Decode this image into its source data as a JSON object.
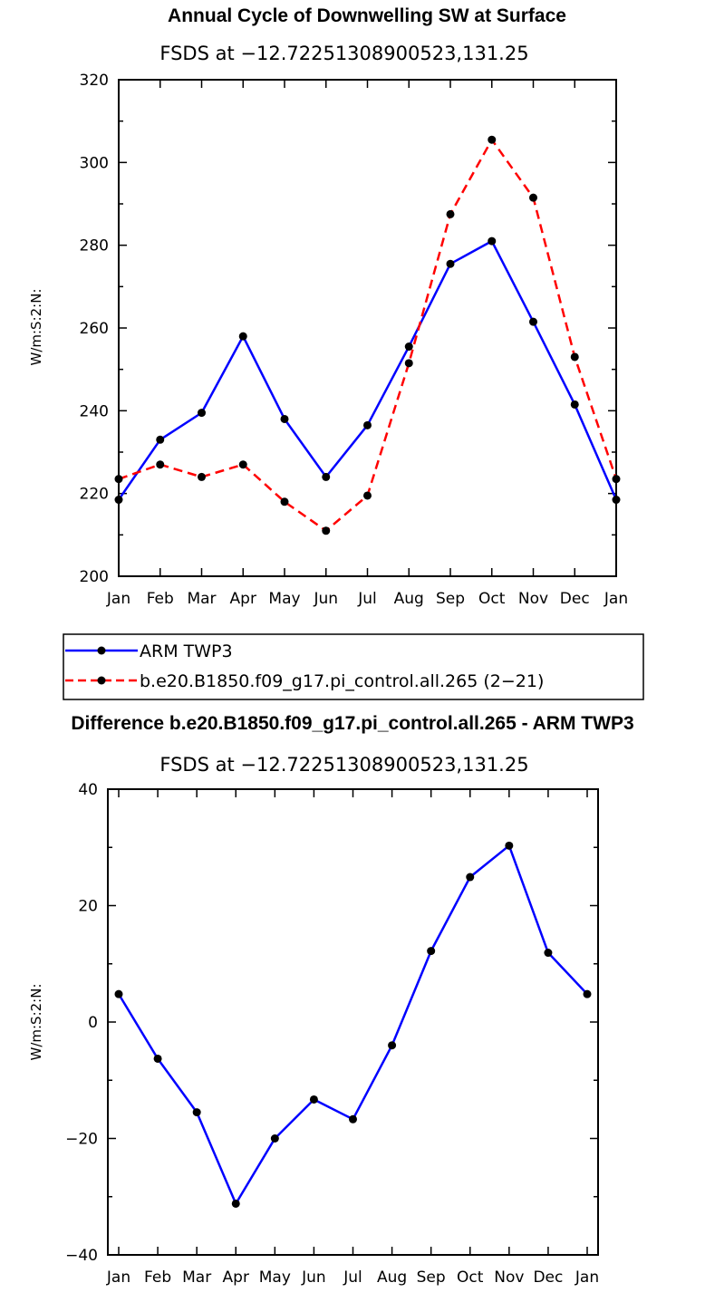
{
  "chart_data": [
    {
      "type": "line",
      "title": "Annual Cycle of Downwelling SW at Surface",
      "subtitle": "FSDS at −12.72251308900523,131.25",
      "ylabel": "W/m:S:2:N:",
      "ylim": [
        200,
        320
      ],
      "yticks": [
        200,
        220,
        240,
        260,
        280,
        300,
        320
      ],
      "categories": [
        "Jan",
        "Feb",
        "Mar",
        "Apr",
        "May",
        "Jun",
        "Jul",
        "Aug",
        "Sep",
        "Oct",
        "Nov",
        "Dec",
        "Jan"
      ],
      "series": [
        {
          "name": "ARM TWP3",
          "color": "#0000ff",
          "dash": "solid",
          "values": [
            218.5,
            233,
            239.5,
            258,
            238,
            224,
            236.5,
            255.5,
            275.5,
            281,
            261.5,
            241.5,
            218.5
          ]
        },
        {
          "name": "b.e20.B1850.f09_g17.pi_control.all.265 (2−21)",
          "color": "#ff0000",
          "dash": "dashed",
          "values": [
            223.5,
            227,
            224,
            227,
            218,
            211,
            219.5,
            251.5,
            287.5,
            305.5,
            291.5,
            253,
            223.5
          ]
        }
      ],
      "legend": "below"
    },
    {
      "type": "line",
      "title": "Difference b.e20.B1850.f09_g17.pi_control.all.265 - ARM TWP3",
      "subtitle": "FSDS at −12.72251308900523,131.25",
      "ylabel": "W/m:S:2:N:",
      "ylim": [
        -40,
        40
      ],
      "yticks": [
        -40,
        -20,
        0,
        20,
        40
      ],
      "yticklabels": [
        "−40",
        "−20",
        "0",
        "20",
        "40"
      ],
      "categories": [
        "Jan",
        "Feb",
        "Mar",
        "Apr",
        "May",
        "Jun",
        "Jul",
        "Aug",
        "Sep",
        "Oct",
        "Nov",
        "Dec",
        "Jan"
      ],
      "series": [
        {
          "color": "#0000ff",
          "dash": "solid",
          "values": [
            4.8,
            -6.3,
            -15.5,
            -31.2,
            -20,
            -13.3,
            -16.7,
            -4,
            12.2,
            24.9,
            30.3,
            11.9,
            4.8
          ]
        }
      ]
    }
  ]
}
